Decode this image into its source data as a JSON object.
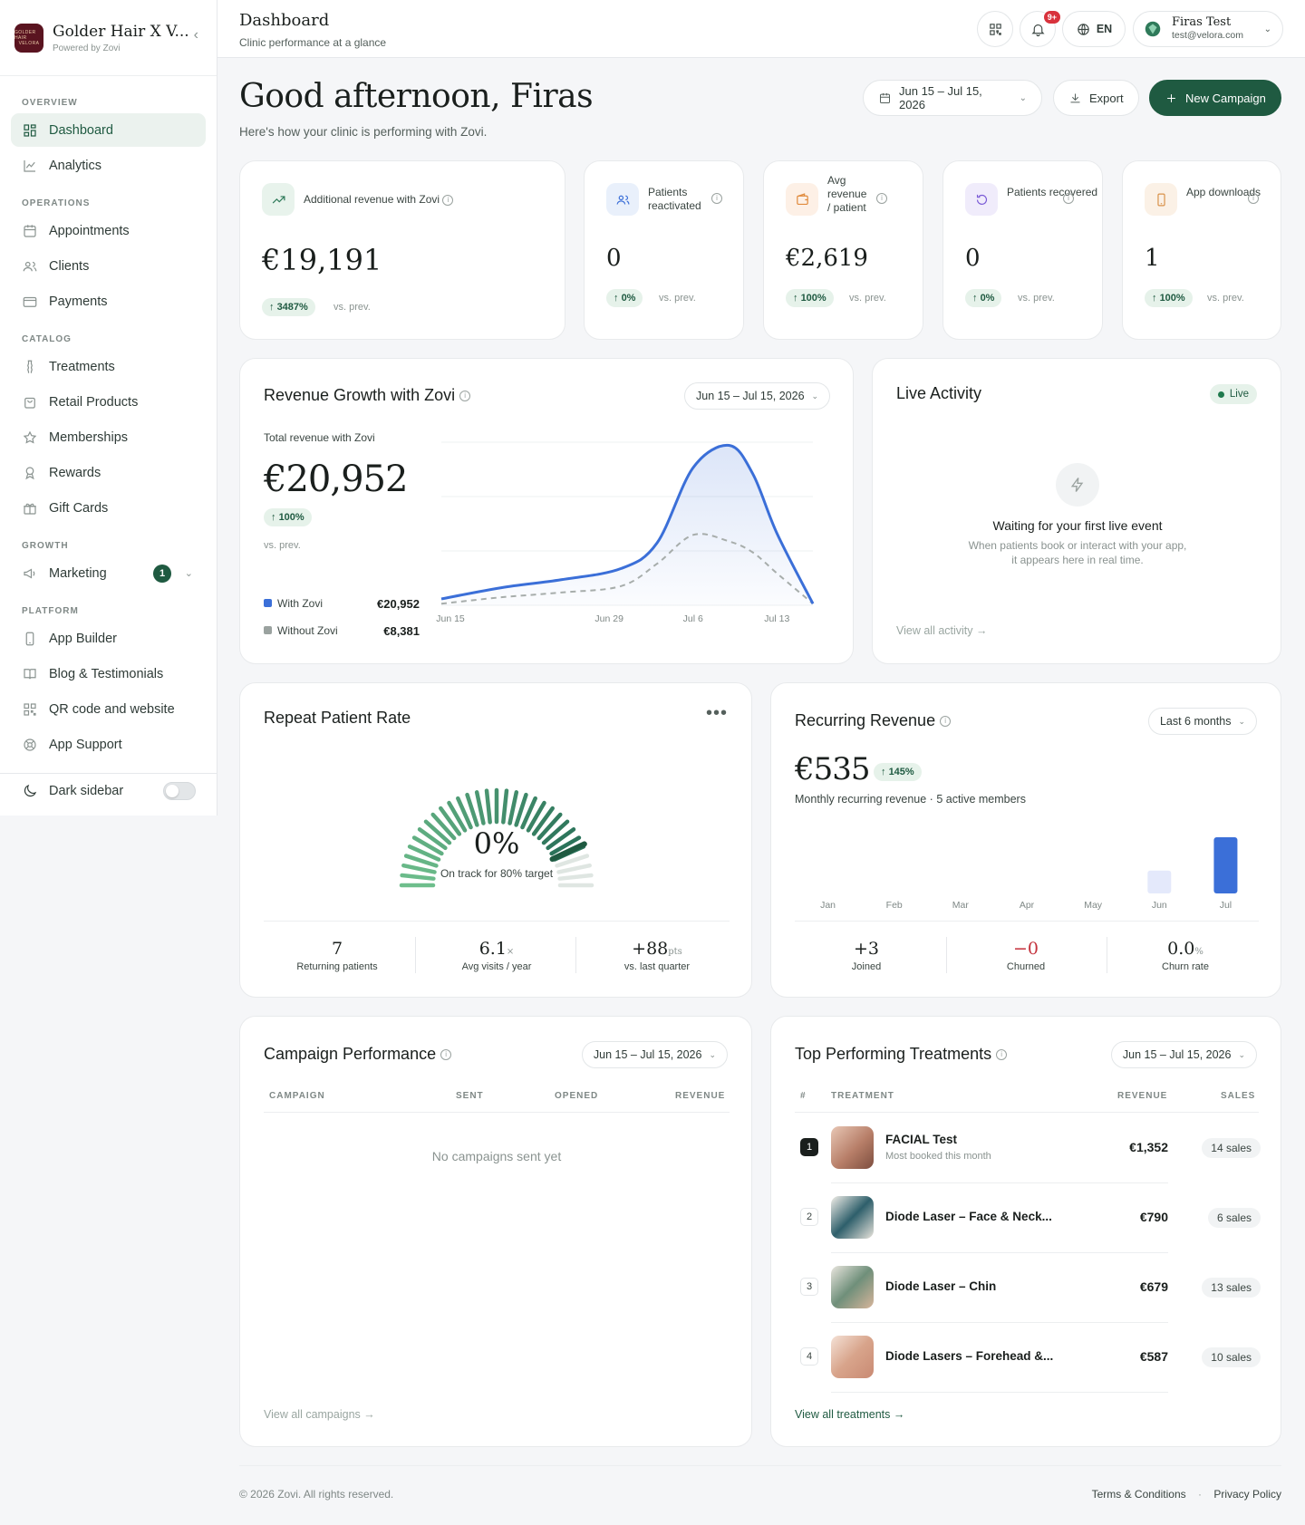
{
  "brand": {
    "name": "Golder Hair X V...",
    "sub": "Powered by Zovi",
    "logo_text": "GOLDER HAIR VELORA"
  },
  "sidebar": {
    "sections": [
      {
        "title": "OVERVIEW",
        "items": [
          {
            "label": "Dashboard",
            "icon": "grid-icon",
            "active": true
          },
          {
            "label": "Analytics",
            "icon": "chart-line-icon"
          }
        ]
      },
      {
        "title": "OPERATIONS",
        "items": [
          {
            "label": "Appointments",
            "icon": "calendar-icon"
          },
          {
            "label": "Clients",
            "icon": "users-icon"
          },
          {
            "label": "Payments",
            "icon": "credit-card-icon"
          }
        ]
      },
      {
        "title": "CATALOG",
        "items": [
          {
            "label": "Treatments",
            "icon": "flask-icon"
          },
          {
            "label": "Retail Products",
            "icon": "bag-icon"
          },
          {
            "label": "Memberships",
            "icon": "star-icon"
          },
          {
            "label": "Rewards",
            "icon": "award-icon"
          },
          {
            "label": "Gift Cards",
            "icon": "gift-icon"
          }
        ]
      },
      {
        "title": "GROWTH",
        "items": [
          {
            "label": "Marketing",
            "icon": "megaphone-icon",
            "badge": "1"
          }
        ]
      },
      {
        "title": "PLATFORM",
        "items": [
          {
            "label": "App Builder",
            "icon": "phone-icon"
          },
          {
            "label": "Blog & Testimonials",
            "icon": "book-icon"
          },
          {
            "label": "QR code and website",
            "icon": "qr-icon"
          },
          {
            "label": "App Support",
            "icon": "lifebuoy-icon"
          }
        ]
      }
    ],
    "dark_sidebar_label": "Dark sidebar"
  },
  "header": {
    "title": "Dashboard",
    "subtitle": "Clinic performance at a glance",
    "notif_count": "9+",
    "lang": "EN",
    "user_name": "Firas Test",
    "user_email": "test@velora.com"
  },
  "greeting": {
    "title": "Good afternoon, Firas",
    "subtitle": "Here's how your clinic is performing with Zovi."
  },
  "actions": {
    "date_range": "Jun 15 – Jul 15, 2026",
    "export": "Export",
    "new_campaign": "New Campaign"
  },
  "kpis": [
    {
      "label": "Additional revenue with Zovi",
      "value": "€19,191",
      "change": "3487%",
      "vs": "vs. prev."
    },
    {
      "label": "Patients reactivated",
      "value": "0",
      "change": "0%",
      "vs": "vs. prev."
    },
    {
      "label": "Avg revenue / patient",
      "value": "€2,619",
      "change": "100%",
      "vs": "vs. prev."
    },
    {
      "label": "Patients recovered",
      "value": "0",
      "change": "0%",
      "vs": "vs. prev."
    },
    {
      "label": "App downloads",
      "value": "1",
      "change": "100%",
      "vs": "vs. prev."
    }
  ],
  "revenue_growth": {
    "title": "Revenue Growth with Zovi",
    "date_range": "Jun 15 – Jul 15, 2026",
    "total_label": "Total revenue with Zovi",
    "total": "€20,952",
    "change": "100%",
    "vs": "vs. prev.",
    "legend": [
      {
        "name": "With Zovi",
        "value": "€20,952",
        "color": "#3b6fd8"
      },
      {
        "name": "Without Zovi",
        "value": "€8,381",
        "color": "#9aa29f"
      }
    ]
  },
  "chart_data": {
    "type": "area",
    "categories": [
      "Jun 15",
      "Jun 29",
      "Jul 6",
      "Jul 13"
    ],
    "series": [
      {
        "name": "With Zovi",
        "x": [
          0,
          5,
          10,
          15,
          18,
          21,
          24,
          26,
          28,
          31
        ],
        "values": [
          0.4,
          1.1,
          1.6,
          2.3,
          3.9,
          8.6,
          10.0,
          8.2,
          4.5,
          0.1
        ]
      },
      {
        "name": "Without Zovi",
        "x": [
          0,
          5,
          10,
          15,
          18,
          21,
          24,
          26,
          28,
          31
        ],
        "values": [
          0.1,
          0.5,
          0.8,
          1.2,
          2.6,
          4.4,
          4.0,
          3.3,
          2.0,
          0.1
        ]
      }
    ]
  },
  "live_activity": {
    "title": "Live Activity",
    "badge": "Live",
    "empty_title": "Waiting for your first live event",
    "empty_text_1": "When patients book or interact with your app,",
    "empty_text_2": "it appears here in real time.",
    "link": "View all activity"
  },
  "repeat_rate": {
    "title": "Repeat Patient Rate",
    "value": "0%",
    "target": "On track for 80% target",
    "progress": 0.0,
    "stats": [
      {
        "value": "7",
        "label": "Returning patients"
      },
      {
        "value": "6.1",
        "unit": "×",
        "label": "Avg visits / year"
      },
      {
        "value": "+88",
        "unit": "pts",
        "label": "vs. last quarter"
      }
    ]
  },
  "recurring": {
    "title": "Recurring Revenue",
    "period": "Last 6 months",
    "value": "€535",
    "change": "145%",
    "subtitle": "Monthly recurring revenue · 5 active members",
    "months": [
      "Jan",
      "Feb",
      "Mar",
      "Apr",
      "May",
      "Jun",
      "Jul"
    ],
    "values": [
      0,
      0,
      0,
      0,
      0,
      218,
      535
    ],
    "stats": [
      {
        "value": "+3",
        "label": "Joined"
      },
      {
        "value": "−0",
        "label": "Churned"
      },
      {
        "value": "0.0",
        "unit": "%",
        "label": "Churn rate"
      }
    ]
  },
  "campaigns": {
    "title": "Campaign Performance",
    "date_range": "Jun 15 – Jul 15, 2026",
    "columns": [
      "CAMPAIGN",
      "SENT",
      "OPENED",
      "REVENUE"
    ],
    "empty": "No campaigns sent yet",
    "link": "View all campaigns"
  },
  "treatments": {
    "title": "Top Performing Treatments",
    "date_range": "Jun 15 – Jul 15, 2026",
    "columns": [
      "#",
      "TREATMENT",
      "REVENUE",
      "SALES"
    ],
    "rows": [
      {
        "rank": "1",
        "name": "FACIAL Test",
        "sub": "Most booked this month",
        "revenue": "€1,352",
        "sales": "14 sales"
      },
      {
        "rank": "2",
        "name": "Diode Laser – Face & Neck...",
        "sub": "",
        "revenue": "€790",
        "sales": "6 sales"
      },
      {
        "rank": "3",
        "name": "Diode Laser – Chin",
        "sub": "",
        "revenue": "€679",
        "sales": "13 sales"
      },
      {
        "rank": "4",
        "name": "Diode Lasers – Forehead &...",
        "sub": "",
        "revenue": "€587",
        "sales": "10 sales"
      }
    ],
    "link": "View all treatments"
  },
  "footer": {
    "copyright": "© 2026 Zovi. All rights reserved.",
    "terms": "Terms & Conditions",
    "sep": "·",
    "privacy": "Privacy Policy"
  }
}
